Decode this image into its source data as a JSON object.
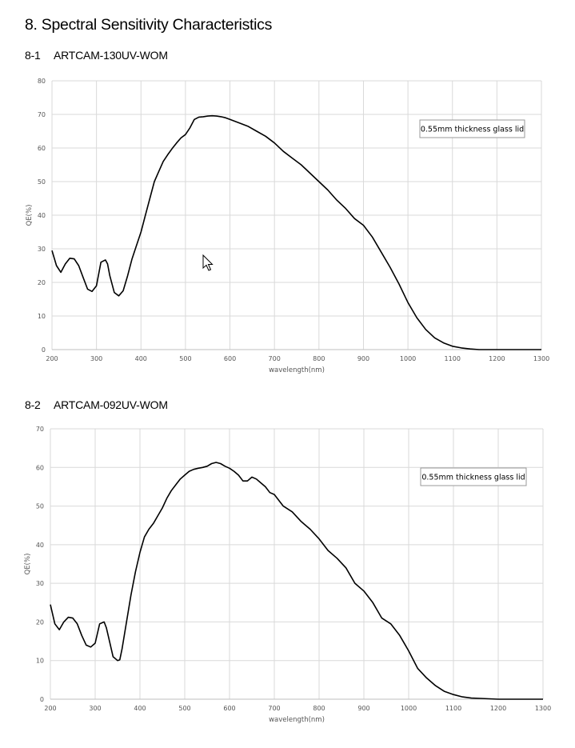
{
  "page": {
    "title": "8. Spectral Sensitivity Characteristics"
  },
  "sections": [
    {
      "number": "8-1",
      "name": "ARTCAM-130UV-WOM"
    },
    {
      "number": "8-2",
      "name": "ARTCAM-092UV-WOM"
    }
  ],
  "chart_data": [
    {
      "type": "line",
      "xlabel": "wavelength(nm)",
      "ylabel": "QE(%)",
      "xlim": [
        200,
        1300
      ],
      "ylim": [
        0,
        80
      ],
      "xticks": [
        200,
        300,
        400,
        500,
        600,
        700,
        800,
        900,
        1000,
        1100,
        1200,
        1300
      ],
      "yticks": [
        0,
        10,
        20,
        30,
        40,
        50,
        60,
        70,
        80
      ],
      "grid": true,
      "annotation": "0.55mm thickness glass lid",
      "series": [
        {
          "color": "#000000",
          "x": [
            200,
            210,
            220,
            230,
            240,
            250,
            260,
            270,
            280,
            290,
            300,
            310,
            320,
            325,
            330,
            340,
            350,
            360,
            370,
            380,
            390,
            400,
            410,
            420,
            430,
            440,
            450,
            460,
            470,
            480,
            490,
            500,
            510,
            520,
            530,
            540,
            550,
            560,
            570,
            580,
            590,
            600,
            620,
            640,
            660,
            680,
            700,
            720,
            740,
            760,
            780,
            800,
            820,
            840,
            860,
            880,
            900,
            920,
            940,
            960,
            980,
            1000,
            1020,
            1040,
            1060,
            1080,
            1100,
            1120,
            1140,
            1160,
            1180,
            1200,
            1250,
            1300
          ],
          "values": [
            29.5,
            25.0,
            23.0,
            25.5,
            27.2,
            27.0,
            25.0,
            21.5,
            18.0,
            17.3,
            19.0,
            26.0,
            26.7,
            25.5,
            22.0,
            17.0,
            16.0,
            17.5,
            22.0,
            27.0,
            31.0,
            35.0,
            40.0,
            45.0,
            50.0,
            53.0,
            56.0,
            58.0,
            59.8,
            61.5,
            63.0,
            64.0,
            66.0,
            68.5,
            69.2,
            69.3,
            69.5,
            69.6,
            69.5,
            69.3,
            69.0,
            68.5,
            67.5,
            66.5,
            65.0,
            63.5,
            61.5,
            59.0,
            57.0,
            55.0,
            52.5,
            50.0,
            47.5,
            44.5,
            42.0,
            39.0,
            37.0,
            33.5,
            29.0,
            24.5,
            19.5,
            14.0,
            9.5,
            6.0,
            3.5,
            2.0,
            1.0,
            0.5,
            0.2,
            0.0,
            0.0,
            0.0,
            0.0,
            0.0
          ]
        }
      ]
    },
    {
      "type": "line",
      "xlabel": "wavelength(nm)",
      "ylabel": "QE(%)",
      "xlim": [
        200,
        1300
      ],
      "ylim": [
        0,
        70
      ],
      "xticks": [
        200,
        300,
        400,
        500,
        600,
        700,
        800,
        900,
        1000,
        1100,
        1200,
        1300
      ],
      "yticks": [
        0,
        10,
        20,
        30,
        40,
        50,
        60,
        70
      ],
      "grid": true,
      "annotation": "0.55mm thickness glass lid",
      "series": [
        {
          "color": "#000000",
          "x": [
            200,
            210,
            220,
            230,
            240,
            250,
            260,
            270,
            280,
            290,
            300,
            310,
            320,
            325,
            330,
            340,
            350,
            355,
            360,
            370,
            380,
            390,
            400,
            410,
            420,
            430,
            440,
            450,
            460,
            470,
            480,
            490,
            500,
            510,
            520,
            530,
            540,
            550,
            560,
            570,
            580,
            590,
            600,
            610,
            620,
            630,
            640,
            650,
            660,
            670,
            680,
            690,
            700,
            720,
            740,
            760,
            780,
            800,
            820,
            840,
            860,
            880,
            900,
            920,
            940,
            960,
            980,
            1000,
            1020,
            1040,
            1060,
            1080,
            1100,
            1120,
            1140,
            1160,
            1180,
            1200,
            1250,
            1300
          ],
          "values": [
            24.5,
            19.5,
            18.0,
            20.0,
            21.2,
            21.0,
            19.5,
            16.5,
            14.0,
            13.5,
            14.5,
            19.5,
            20.0,
            18.5,
            16.0,
            11.0,
            10.0,
            10.2,
            13.0,
            20.0,
            27.0,
            33.0,
            38.0,
            42.0,
            44.0,
            45.5,
            47.5,
            49.5,
            52.0,
            54.0,
            55.5,
            57.0,
            58.0,
            59.0,
            59.5,
            59.8,
            60.0,
            60.3,
            61.0,
            61.3,
            61.0,
            60.3,
            59.8,
            59.0,
            58.0,
            56.5,
            56.5,
            57.5,
            57.0,
            56.0,
            55.0,
            53.5,
            53.0,
            50.0,
            48.5,
            46.0,
            44.0,
            41.5,
            38.5,
            36.5,
            34.0,
            30.0,
            28.0,
            25.0,
            21.0,
            19.5,
            16.5,
            12.5,
            8.0,
            5.5,
            3.5,
            2.0,
            1.2,
            0.6,
            0.3,
            0.2,
            0.1,
            0.0,
            0.0,
            0.0
          ]
        }
      ]
    }
  ]
}
